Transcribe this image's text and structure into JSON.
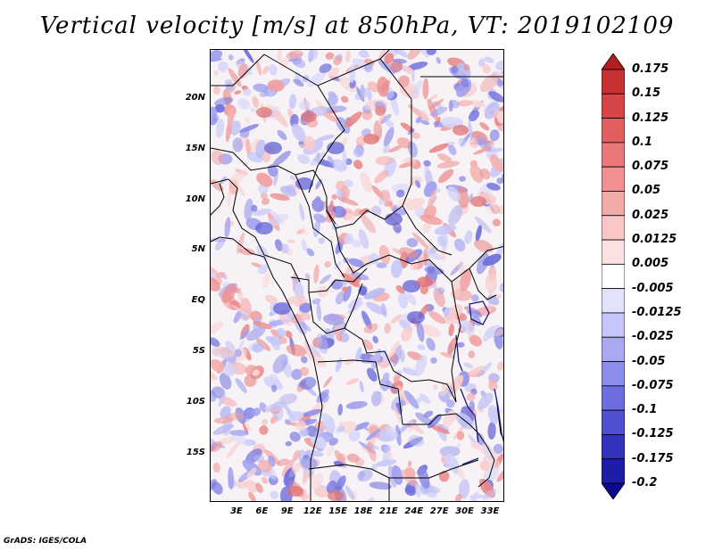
{
  "title": "Vertical velocity [m/s] at 850hPa, VT: 2019102109",
  "credit": "GrADS: IGES/COLA",
  "map": {
    "lat_labels": [
      "20N",
      "15N",
      "10N",
      "5N",
      "EQ",
      "5S",
      "10S",
      "15S"
    ],
    "lon_labels": [
      "3E",
      "6E",
      "9E",
      "12E",
      "15E",
      "18E",
      "21E",
      "24E",
      "27E",
      "30E",
      "33E"
    ]
  },
  "colorbar": {
    "labels": [
      "0.175",
      "0.15",
      "0.125",
      "0.1",
      "0.075",
      "0.05",
      "0.025",
      "0.0125",
      "0.005",
      "-0.005",
      "-0.0125",
      "-0.025",
      "-0.05",
      "-0.075",
      "-0.1",
      "-0.125",
      "-0.175",
      "-0.2"
    ],
    "colors": [
      "#b41e1e",
      "#c83232",
      "#d74646",
      "#e15f5f",
      "#ea7878",
      "#f09090",
      "#f5aaaa",
      "#f8c6c6",
      "#fbe2e2",
      "#ffffff",
      "#e2e2fb",
      "#c6c6f8",
      "#a9a9f2",
      "#8c8cea",
      "#6e6ee0",
      "#5050d2",
      "#3232bc",
      "#1e1ea5",
      "#0a0a8c"
    ]
  }
}
